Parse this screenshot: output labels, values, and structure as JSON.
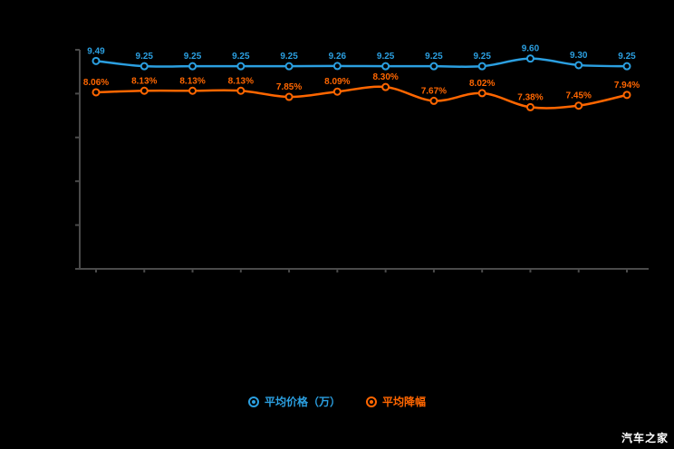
{
  "watermark": "汽车之家",
  "colors": {
    "background": "#000000",
    "axis": "#4a4a4a",
    "tick": "#4a4a4a",
    "watermark_text": "#ffffff"
  },
  "chart_data": {
    "type": "line",
    "title": "",
    "x": [
      1,
      2,
      3,
      4,
      5,
      6,
      7,
      8,
      9,
      10,
      11,
      12
    ],
    "x_tick_labels": [],
    "ylim": [
      0,
      10
    ],
    "y_ticks": [
      0,
      2,
      4,
      6,
      8,
      10
    ],
    "grid": false,
    "legend_position": "bottom",
    "series": [
      {
        "name": "平均价格（万）",
        "color": "#2b9fe0",
        "values": [
          9.49,
          9.25,
          9.25,
          9.25,
          9.25,
          9.26,
          9.25,
          9.25,
          9.25,
          9.6,
          9.3,
          9.25
        ],
        "labels": [
          "9.49",
          "9.25",
          "9.25",
          "9.25",
          "9.25",
          "9.26",
          "9.25",
          "9.25",
          "9.25",
          "9.60",
          "9.30",
          "9.25"
        ]
      },
      {
        "name": "平均降幅",
        "color": "#ff6600",
        "values": [
          8.06,
          8.13,
          8.13,
          8.13,
          7.85,
          8.09,
          8.3,
          7.67,
          8.02,
          7.38,
          7.45,
          7.94
        ],
        "labels": [
          "8.06%",
          "8.13%",
          "8.13%",
          "8.13%",
          "7.85%",
          "8.09%",
          "8.30%",
          "7.67%",
          "8.02%",
          "7.38%",
          "7.45%",
          "7.94%"
        ]
      }
    ]
  }
}
